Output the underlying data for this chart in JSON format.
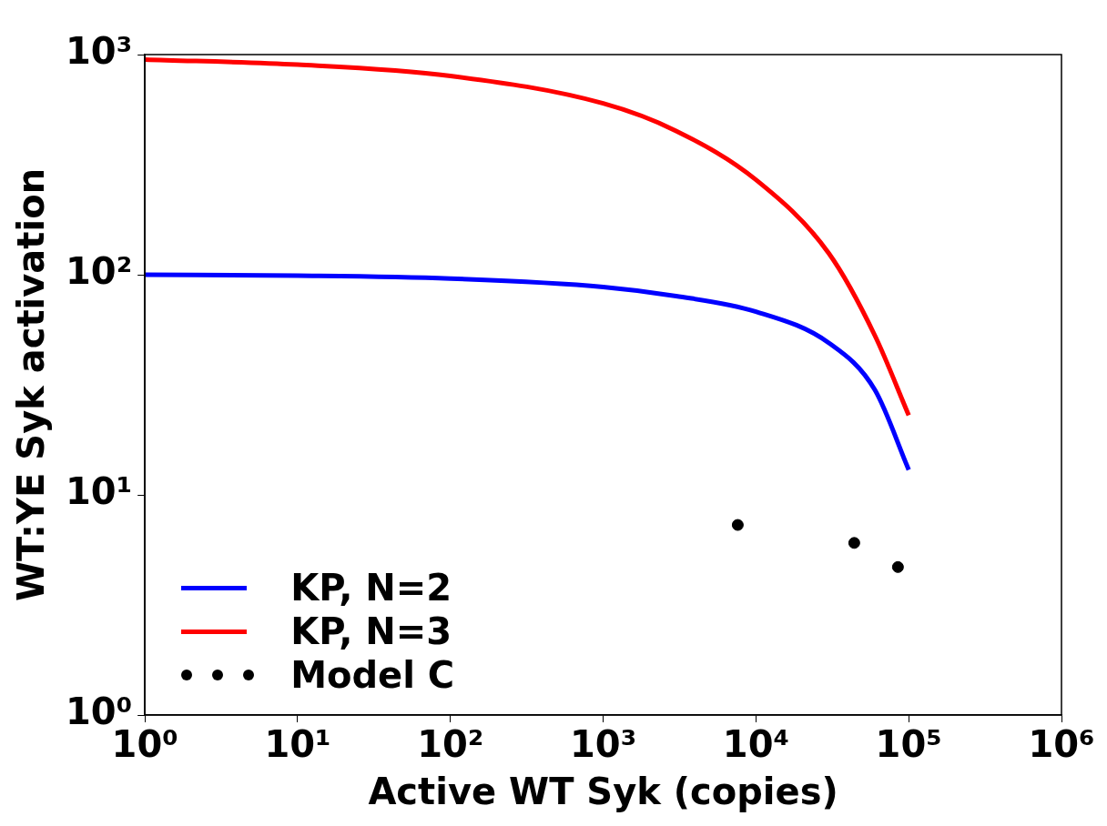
{
  "chart_data": {
    "type": "line",
    "xlabel": "Active WT Syk (copies)",
    "ylabel": "WT:YE Syk activation",
    "log": "xy",
    "grid": false,
    "legend": "bottom left",
    "xlim": [
      1,
      1000000
    ],
    "ylim": [
      1,
      1000
    ],
    "xticks": [
      {
        "value": 1,
        "label": "10⁰"
      },
      {
        "value": 10,
        "label": "10¹"
      },
      {
        "value": 100,
        "label": "10²"
      },
      {
        "value": 1000,
        "label": "10³"
      },
      {
        "value": 10000,
        "label": "10⁴"
      },
      {
        "value": 100000,
        "label": "10⁵"
      },
      {
        "value": 1000000,
        "label": "10⁶"
      }
    ],
    "yticks": [
      {
        "value": 1,
        "label": "10⁰"
      },
      {
        "value": 10,
        "label": "10¹"
      },
      {
        "value": 100,
        "label": "10²"
      },
      {
        "value": 1000,
        "label": "10³"
      }
    ],
    "series": [
      {
        "name": "KP, N=2",
        "type": "line",
        "color": "#0000ff",
        "x": [
          1,
          10,
          100,
          1000,
          3000,
          10000,
          30000,
          60000,
          100000
        ],
        "values": [
          100,
          99,
          96,
          88,
          80,
          68,
          49,
          30,
          13
        ]
      },
      {
        "name": "KP, N=3",
        "type": "line",
        "color": "#ff0000",
        "x": [
          1,
          10,
          100,
          1000,
          3000,
          10000,
          30000,
          60000,
          100000
        ],
        "values": [
          950,
          900,
          800,
          600,
          450,
          270,
          125,
          53,
          23
        ]
      },
      {
        "name": "Model C",
        "type": "scatter",
        "marker": "circle",
        "color": "#000000",
        "x": [
          7600,
          44000,
          85000
        ],
        "values": [
          7.3,
          6.05,
          4.7
        ]
      }
    ]
  }
}
